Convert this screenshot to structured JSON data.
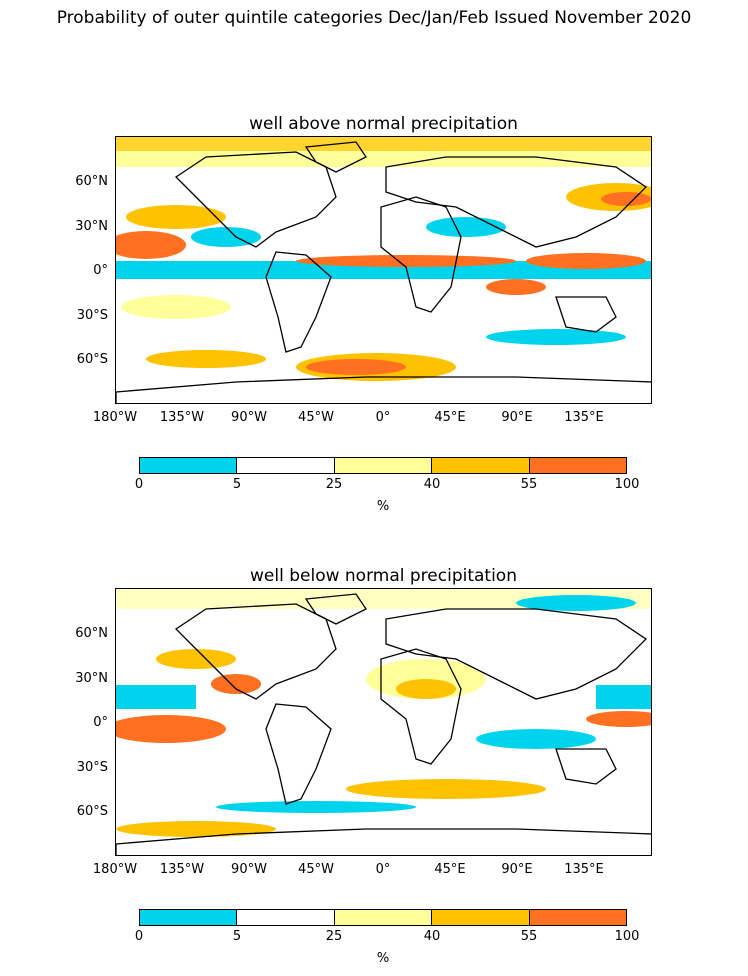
{
  "title": "Probability of outer quintile categories Dec/Jan/Feb Issued November 2020",
  "panels": [
    {
      "title": "well above normal precipitation"
    },
    {
      "title": "well below normal precipitation"
    }
  ],
  "x_ticks": [
    "180°W",
    "135°W",
    "90°W",
    "45°W",
    "0°",
    "45°E",
    "90°E",
    "135°E"
  ],
  "y_ticks": [
    "60°N",
    "30°N",
    "0°",
    "30°S",
    "60°S"
  ],
  "colorbar": {
    "bounds": [
      "0",
      "5",
      "25",
      "40",
      "55",
      "100"
    ],
    "colors": [
      "#00d4ec",
      "#ffffff",
      "#ffff99",
      "#ffc200",
      "#ff7020"
    ],
    "unit": "%"
  },
  "chart_data": {
    "type": "heatmap",
    "x_range": [
      -180,
      180
    ],
    "y_range": [
      -90,
      90
    ],
    "categories_percent": [
      [
        0,
        5
      ],
      [
        5,
        25
      ],
      [
        25,
        40
      ],
      [
        40,
        55
      ],
      [
        55,
        100
      ]
    ]
  }
}
